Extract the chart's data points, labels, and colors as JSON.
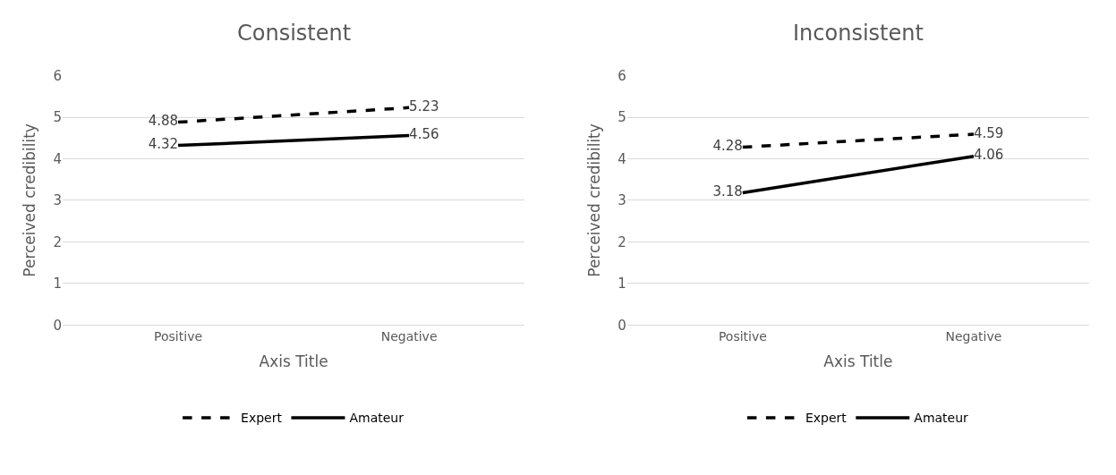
{
  "chart_data": [
    {
      "type": "line",
      "title": "Consistent",
      "xlabel": "Axis Title",
      "ylabel": "Perceived credibility",
      "categories": [
        "Positive",
        "Negative"
      ],
      "ylim": [
        0,
        6
      ],
      "yticks": [
        0,
        1,
        2,
        3,
        4,
        5,
        6
      ],
      "grid": "y",
      "legend": "bottom",
      "data_labels": true,
      "marker": "none",
      "series": [
        {
          "name": "Expert",
          "color": "#000000",
          "line_style": "dashed",
          "values": [
            4.88,
            5.23
          ]
        },
        {
          "name": "Amateur",
          "color": "#000000",
          "line_style": "solid",
          "values": [
            4.32,
            4.56
          ]
        }
      ]
    },
    {
      "type": "line",
      "title": "Inconsistent",
      "xlabel": "Axis Title",
      "ylabel": "Perceived credibility",
      "categories": [
        "Positive",
        "Negative"
      ],
      "ylim": [
        0,
        6
      ],
      "yticks": [
        0,
        1,
        2,
        3,
        4,
        5,
        6
      ],
      "grid": "y",
      "legend": "bottom",
      "data_labels": true,
      "marker": "none",
      "series": [
        {
          "name": "Expert",
          "color": "#000000",
          "line_style": "dashed",
          "values": [
            4.28,
            4.59
          ]
        },
        {
          "name": "Amateur",
          "color": "#000000",
          "line_style": "solid",
          "values": [
            3.18,
            4.06
          ]
        }
      ]
    }
  ]
}
